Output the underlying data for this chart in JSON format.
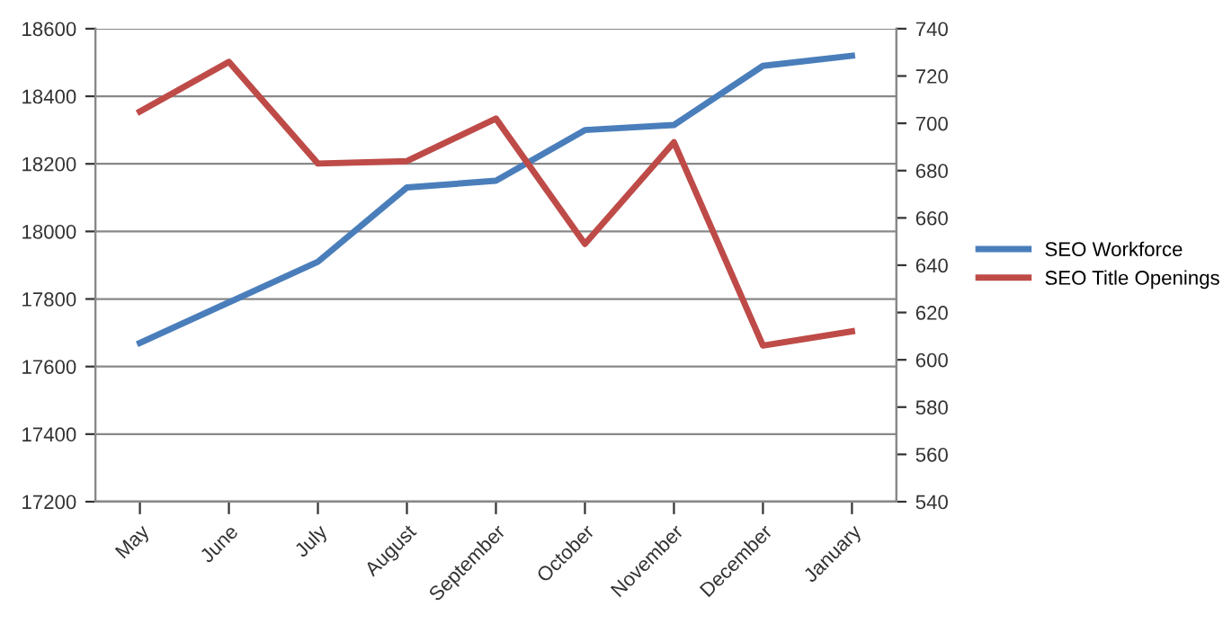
{
  "chart_data": {
    "type": "line",
    "categories": [
      "May",
      "June",
      "July",
      "August",
      "September",
      "October",
      "November",
      "December",
      "January"
    ],
    "series": [
      {
        "name": "SEO Workforce",
        "color": "#4a7ebb",
        "values": [
          17670,
          17790,
          17910,
          18130,
          18150,
          18300,
          18315,
          18490,
          18520
        ]
      },
      {
        "name": "SEO Title Openings",
        "color": "#be4b48",
        "axis": "y2",
        "values": [
          705,
          726,
          683,
          684,
          702,
          649,
          692,
          606,
          612
        ]
      }
    ],
    "ylim": [
      17200,
      18600
    ],
    "yticks": [
      17200,
      17400,
      17600,
      17800,
      18000,
      18200,
      18400,
      18600
    ],
    "y2lim": [
      540,
      740
    ],
    "y2ticks": [
      540,
      560,
      580,
      600,
      620,
      640,
      660,
      680,
      700,
      720,
      740
    ],
    "grid": "y",
    "legend": "right",
    "marker": "none",
    "line_style": "solid"
  }
}
